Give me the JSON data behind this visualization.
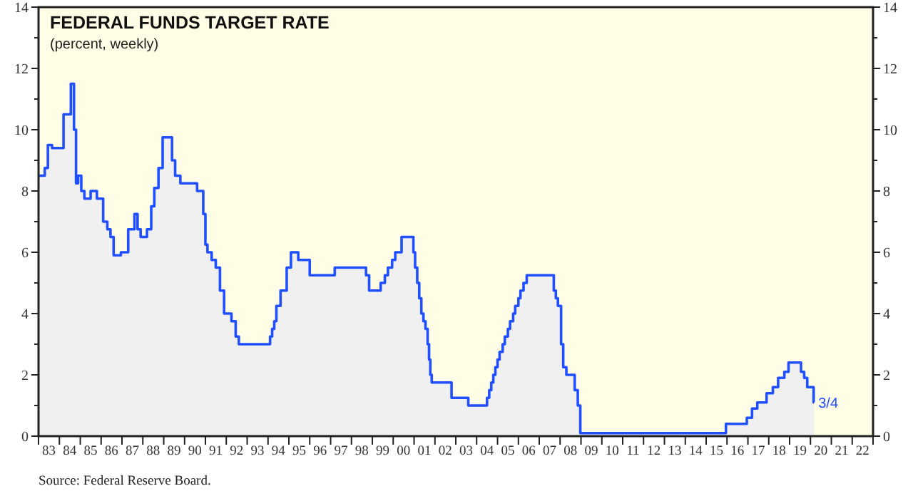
{
  "chart_data": {
    "type": "step",
    "title": "FEDERAL FUNDS TARGET RATE",
    "subtitle": "(percent, weekly)",
    "annotations": [
      {
        "text": "3/4",
        "x": "2020-03-04",
        "y": 1.1
      },
      "Source: Federal Reserve Board."
    ],
    "xlim": [
      "1983",
      "2023"
    ],
    "xticks": [
      {
        "value": "1983",
        "label": null
      },
      {
        "value": "1983-07-01",
        "label": "83"
      },
      {
        "value": "1984",
        "label": null
      },
      {
        "value": "1984-07-01",
        "label": "84"
      },
      {
        "value": "1985",
        "label": null
      },
      {
        "value": "1985-07-01",
        "label": "85"
      },
      {
        "value": "1986",
        "label": null
      },
      {
        "value": "1986-07-01",
        "label": "86"
      },
      {
        "value": "1987",
        "label": null
      },
      {
        "value": "1987-07-01",
        "label": "87"
      },
      {
        "value": "1988",
        "label": null
      },
      {
        "value": "1988-07-01",
        "label": "88"
      },
      {
        "value": "1989",
        "label": null
      },
      {
        "value": "1989-07-01",
        "label": "89"
      },
      {
        "value": "1990",
        "label": null
      },
      {
        "value": "1990-07-01",
        "label": "90"
      },
      {
        "value": "1991",
        "label": null
      },
      {
        "value": "1991-07-01",
        "label": "91"
      },
      {
        "value": "1992",
        "label": null
      },
      {
        "value": "1992-07-01",
        "label": "92"
      },
      {
        "value": "1993",
        "label": null
      },
      {
        "value": "1993-07-01",
        "label": "93"
      },
      {
        "value": "1994",
        "label": null
      },
      {
        "value": "1994-07-01",
        "label": "94"
      },
      {
        "value": "1995",
        "label": null
      },
      {
        "value": "1995-07-01",
        "label": "95"
      },
      {
        "value": "1996",
        "label": null
      },
      {
        "value": "1996-07-01",
        "label": "96"
      },
      {
        "value": "1997",
        "label": null
      },
      {
        "value": "1997-07-01",
        "label": "97"
      },
      {
        "value": "1998",
        "label": null
      },
      {
        "value": "1998-07-01",
        "label": "98"
      },
      {
        "value": "1999",
        "label": null
      },
      {
        "value": "1999-07-01",
        "label": "99"
      },
      {
        "value": "2000",
        "label": null
      },
      {
        "value": "2000-07-01",
        "label": "00"
      },
      {
        "value": "2001",
        "label": null
      },
      {
        "value": "2001-07-01",
        "label": "01"
      },
      {
        "value": "2002",
        "label": null
      },
      {
        "value": "2002-07-01",
        "label": "02"
      },
      {
        "value": "2003",
        "label": null
      },
      {
        "value": "2003-07-01",
        "label": "03"
      },
      {
        "value": "2004",
        "label": null
      },
      {
        "value": "2004-07-01",
        "label": "04"
      },
      {
        "value": "2005",
        "label": null
      },
      {
        "value": "2005-07-01",
        "label": "05"
      },
      {
        "value": "2006",
        "label": null
      },
      {
        "value": "2006-07-01",
        "label": "06"
      },
      {
        "value": "2007",
        "label": null
      },
      {
        "value": "2007-07-01",
        "label": "07"
      },
      {
        "value": "2008",
        "label": null
      },
      {
        "value": "2008-07-01",
        "label": "08"
      },
      {
        "value": "2009",
        "label": null
      },
      {
        "value": "2009-07-01",
        "label": "09"
      },
      {
        "value": "2010",
        "label": null
      },
      {
        "value": "2010-07-01",
        "label": "10"
      },
      {
        "value": "2011",
        "label": null
      },
      {
        "value": "2011-07-01",
        "label": "11"
      },
      {
        "value": "2012",
        "label": null
      },
      {
        "value": "2012-07-01",
        "label": "12"
      },
      {
        "value": "2013",
        "label": null
      },
      {
        "value": "2013-07-01",
        "label": "13"
      },
      {
        "value": "2014",
        "label": null
      },
      {
        "value": "2014-07-01",
        "label": "14"
      },
      {
        "value": "2015",
        "label": null
      },
      {
        "value": "2015-07-01",
        "label": "15"
      },
      {
        "value": "2016",
        "label": null
      },
      {
        "value": "2016-07-01",
        "label": "16"
      },
      {
        "value": "2017",
        "label": null
      },
      {
        "value": "2017-07-01",
        "label": "17"
      },
      {
        "value": "2018",
        "label": null
      },
      {
        "value": "2018-07-01",
        "label": "18"
      },
      {
        "value": "2019",
        "label": null
      },
      {
        "value": "2019-07-01",
        "label": "19"
      },
      {
        "value": "2020",
        "label": null
      },
      {
        "value": "2020-07-01",
        "label": "20"
      },
      {
        "value": "2021",
        "label": null
      },
      {
        "value": "2021-07-01",
        "label": "21"
      },
      {
        "value": "2022",
        "label": null
      },
      {
        "value": "2022-07-01",
        "label": "22"
      },
      {
        "value": "2023",
        "label": null
      }
    ],
    "ylim": [
      0,
      14
    ],
    "yticks": [
      0,
      {
        "value": 1,
        "label": null
      },
      2,
      {
        "value": 3,
        "label": null
      },
      4,
      {
        "value": 5,
        "label": null
      },
      6,
      {
        "value": 7,
        "label": null
      },
      8,
      {
        "value": 9,
        "label": null
      },
      10,
      {
        "value": 11,
        "label": null
      },
      12,
      {
        "value": 13,
        "label": null
      },
      14
    ],
    "y2lim": [
      0,
      14
    ],
    "y2ticks": [
      0,
      {
        "value": 1,
        "label": null
      },
      2,
      {
        "value": 3,
        "label": null
      },
      4,
      {
        "value": 5,
        "label": null
      },
      6,
      {
        "value": 7,
        "label": null
      },
      8,
      {
        "value": 9,
        "label": null
      },
      10,
      {
        "value": 11,
        "label": null
      },
      12,
      {
        "value": 13,
        "label": null
      },
      14
    ],
    "series": [
      {
        "type": "area",
        "color": "#f0f0f0",
        "x": [
          "1983-01-01",
          "1983-04-20",
          "1983-06-14",
          "1983-08-26",
          "1984-03-14",
          "1984-07-20",
          "1984-09-13",
          "1984-10-19",
          "1984-11-24",
          "1985-01-19",
          "1985-03-14",
          "1985-07-01",
          "1985-10-19",
          "1986-02-06",
          "1986-04-20",
          "1986-06-14",
          "1986-08-08",
          "1986-12-13",
          "1987-04-20",
          "1987-08-08",
          "1987-10-01",
          "1987-11-24",
          "1988-03-14",
          "1988-05-27",
          "1988-07-20",
          "1988-10-01",
          "1988-12-13",
          "1989-03-14",
          "1989-05-27",
          "1989-07-20",
          "1989-10-19",
          "1990-08-08",
          "1990-11-24",
          "1991-01-01",
          "1991-02-06",
          "1991-04-20",
          "1991-07-01",
          "1991-09-13",
          "1991-11-24",
          "1992-01-01",
          "1992-04-01",
          "1992-06-14",
          "1992-08-08",
          "1994-02-06",
          "1994-03-14",
          "1994-04-20",
          "1994-05-27",
          "1994-08-08",
          "1994-11-24",
          "1995-02-06",
          "1995-06-14",
          "1996-01-01",
          "1997-03-14",
          "1998-09-13",
          "1998-11-06",
          "1999-05-27",
          "1999-08-08",
          "1999-10-01",
          "1999-12-13",
          "2000-02-06",
          "2000-05-27",
          "2000-12-20",
          "2001-01-19",
          "2001-02-25",
          "2001-04-01",
          "2001-05-08",
          "2001-06-14",
          "2001-07-20",
          "2001-08-26",
          "2001-09-20",
          "2001-10-12",
          "2001-11-06",
          "2001-11-24",
          "2002-10-19",
          "2003-08-08",
          "2004-07-01",
          "2004-08-08",
          "2004-09-13",
          "2004-10-19",
          "2004-11-24",
          "2005-01-01",
          "2005-02-06",
          "2005-04-01",
          "2005-05-08",
          "2005-07-01",
          "2005-08-08",
          "2005-10-01",
          "2005-11-06",
          "2006-01-01",
          "2006-02-06",
          "2006-04-01",
          "2006-05-27",
          "2006-07-01",
          "2007-09-13",
          "2007-10-19",
          "2007-11-24",
          "2008-01-19",
          "2008-02-25",
          "2008-04-20",
          "2008-09-13",
          "2008-11-06",
          "2008-12-20",
          "2015-12-13",
          "2016-12-13",
          "2017-03-14",
          "2017-06-14",
          "2017-11-24",
          "2018-03-14",
          "2018-06-14",
          "2018-10-01",
          "2018-12-13",
          "2019-07-20",
          "2019-09-13",
          "2019-11-06",
          "2020-02-26",
          "2020-03-04"
        ],
        "values": [
          8.5,
          8.75,
          9.5,
          9.4,
          10.5,
          11.5,
          10.0,
          8.25,
          8.5,
          8.0,
          7.75,
          8.0,
          7.75,
          7.0,
          6.75,
          6.5,
          5.9,
          6.0,
          6.75,
          7.25,
          6.75,
          6.5,
          6.75,
          7.5,
          8.1,
          8.75,
          9.75,
          9.75,
          9.0,
          8.5,
          8.25,
          8.0,
          7.25,
          6.25,
          6.0,
          5.75,
          5.5,
          4.75,
          4.0,
          4.0,
          3.75,
          3.25,
          3.0,
          3.25,
          3.5,
          3.75,
          4.25,
          4.75,
          5.5,
          6.0,
          5.75,
          5.25,
          5.5,
          5.25,
          4.75,
          5.0,
          5.25,
          5.5,
          5.75,
          6.0,
          6.5,
          6.0,
          5.5,
          5.0,
          4.5,
          4.0,
          3.75,
          3.5,
          3.0,
          2.5,
          2.0,
          1.75,
          1.75,
          1.25,
          1.0,
          1.25,
          1.5,
          1.75,
          2.0,
          2.25,
          2.5,
          2.75,
          3.0,
          3.25,
          3.5,
          3.75,
          4.0,
          4.25,
          4.5,
          4.75,
          5.0,
          5.25,
          5.25,
          4.75,
          4.5,
          4.25,
          3.0,
          2.25,
          2.0,
          1.5,
          1.0,
          0.1,
          0.4,
          0.6,
          0.9,
          1.1,
          1.4,
          1.6,
          1.9,
          2.1,
          2.4,
          2.1,
          1.9,
          1.6,
          1.1,
          1.1
        ]
      },
      {
        "color": "#1f4fff",
        "x": [
          "1983-01-01",
          "1983-04-20",
          "1983-06-14",
          "1983-08-26",
          "1984-03-14",
          "1984-07-20",
          "1984-09-13",
          "1984-10-19",
          "1984-11-24",
          "1985-01-19",
          "1985-03-14",
          "1985-07-01",
          "1985-10-19",
          "1986-02-06",
          "1986-04-20",
          "1986-06-14",
          "1986-08-08",
          "1986-12-13",
          "1987-04-20",
          "1987-08-08",
          "1987-10-01",
          "1987-11-24",
          "1988-03-14",
          "1988-05-27",
          "1988-07-20",
          "1988-10-01",
          "1988-12-13",
          "1989-03-14",
          "1989-05-27",
          "1989-07-20",
          "1989-10-19",
          "1990-08-08",
          "1990-11-24",
          "1991-01-01",
          "1991-02-06",
          "1991-04-20",
          "1991-07-01",
          "1991-09-13",
          "1991-11-24",
          "1992-01-01",
          "1992-04-01",
          "1992-06-14",
          "1992-08-08",
          "1994-02-06",
          "1994-03-14",
          "1994-04-20",
          "1994-05-27",
          "1994-08-08",
          "1994-11-24",
          "1995-02-06",
          "1995-06-14",
          "1996-01-01",
          "1997-03-14",
          "1998-09-13",
          "1998-11-06",
          "1999-05-27",
          "1999-08-08",
          "1999-10-01",
          "1999-12-13",
          "2000-02-06",
          "2000-05-27",
          "2000-12-20",
          "2001-01-19",
          "2001-02-25",
          "2001-04-01",
          "2001-05-08",
          "2001-06-14",
          "2001-07-20",
          "2001-08-26",
          "2001-09-20",
          "2001-10-12",
          "2001-11-06",
          "2001-11-24",
          "2002-10-19",
          "2003-08-08",
          "2004-07-01",
          "2004-08-08",
          "2004-09-13",
          "2004-10-19",
          "2004-11-24",
          "2005-01-01",
          "2005-02-06",
          "2005-04-01",
          "2005-05-08",
          "2005-07-01",
          "2005-08-08",
          "2005-10-01",
          "2005-11-06",
          "2006-01-01",
          "2006-02-06",
          "2006-04-01",
          "2006-05-27",
          "2006-07-01",
          "2007-09-13",
          "2007-10-19",
          "2007-11-24",
          "2008-01-19",
          "2008-02-25",
          "2008-04-20",
          "2008-09-13",
          "2008-11-06",
          "2008-12-20",
          "2015-12-13",
          "2016-12-13",
          "2017-03-14",
          "2017-06-14",
          "2017-11-24",
          "2018-03-14",
          "2018-06-14",
          "2018-10-01",
          "2018-12-13",
          "2019-07-20",
          "2019-09-13",
          "2019-11-06",
          "2020-02-26",
          "2020-03-04"
        ],
        "values": [
          8.5,
          8.75,
          9.5,
          9.4,
          10.5,
          11.5,
          10.0,
          8.25,
          8.5,
          8.0,
          7.75,
          8.0,
          7.75,
          7.0,
          6.75,
          6.5,
          5.9,
          6.0,
          6.75,
          7.25,
          6.75,
          6.5,
          6.75,
          7.5,
          8.1,
          8.75,
          9.75,
          9.75,
          9.0,
          8.5,
          8.25,
          8.0,
          7.25,
          6.25,
          6.0,
          5.75,
          5.5,
          4.75,
          4.0,
          4.0,
          3.75,
          3.25,
          3.0,
          3.25,
          3.5,
          3.75,
          4.25,
          4.75,
          5.5,
          6.0,
          5.75,
          5.25,
          5.5,
          5.25,
          4.75,
          5.0,
          5.25,
          5.5,
          5.75,
          6.0,
          6.5,
          6.0,
          5.5,
          5.0,
          4.5,
          4.0,
          3.75,
          3.5,
          3.0,
          2.5,
          2.0,
          1.75,
          1.75,
          1.25,
          1.0,
          1.25,
          1.5,
          1.75,
          2.0,
          2.25,
          2.5,
          2.75,
          3.0,
          3.25,
          3.5,
          3.75,
          4.0,
          4.25,
          4.5,
          4.75,
          5.0,
          5.25,
          5.25,
          4.75,
          4.5,
          4.25,
          3.0,
          2.25,
          2.0,
          1.5,
          1.0,
          0.1,
          0.4,
          0.6,
          0.9,
          1.1,
          1.4,
          1.6,
          1.9,
          2.1,
          2.4,
          2.1,
          1.9,
          1.6,
          1.1,
          1.1
        ]
      }
    ]
  }
}
